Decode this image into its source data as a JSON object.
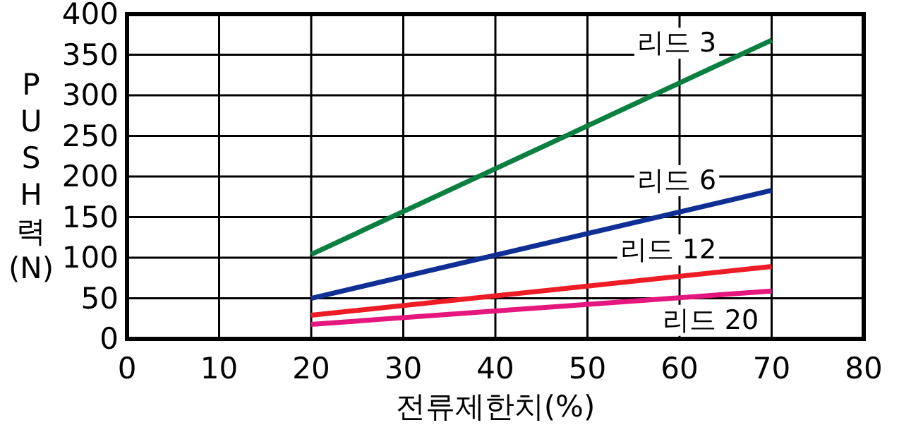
{
  "chart_data": {
    "type": "line",
    "xlabel": "전류제한치(%)",
    "ylabel": "PUSH력(N)",
    "xlim": [
      0,
      80
    ],
    "xticks": [
      0,
      10,
      20,
      30,
      40,
      50,
      60,
      70,
      80
    ],
    "ylim": [
      0,
      400
    ],
    "yticks": [
      0,
      50,
      100,
      150,
      200,
      250,
      300,
      350,
      400
    ],
    "grid": true,
    "marker": "none",
    "line_style": "solid",
    "x": [
      20,
      70
    ],
    "series": [
      {
        "name": "리드 3",
        "color": "#0a8040",
        "values": [
          104,
          368
        ]
      },
      {
        "name": "리드 6",
        "color": "#0f2f95",
        "values": [
          50,
          183
        ]
      },
      {
        "name": "리드 12",
        "color": "#ee1c25",
        "values": [
          29,
          89
        ]
      },
      {
        "name": "리드 20",
        "color": "#e5177e",
        "values": [
          18,
          59
        ]
      }
    ]
  }
}
